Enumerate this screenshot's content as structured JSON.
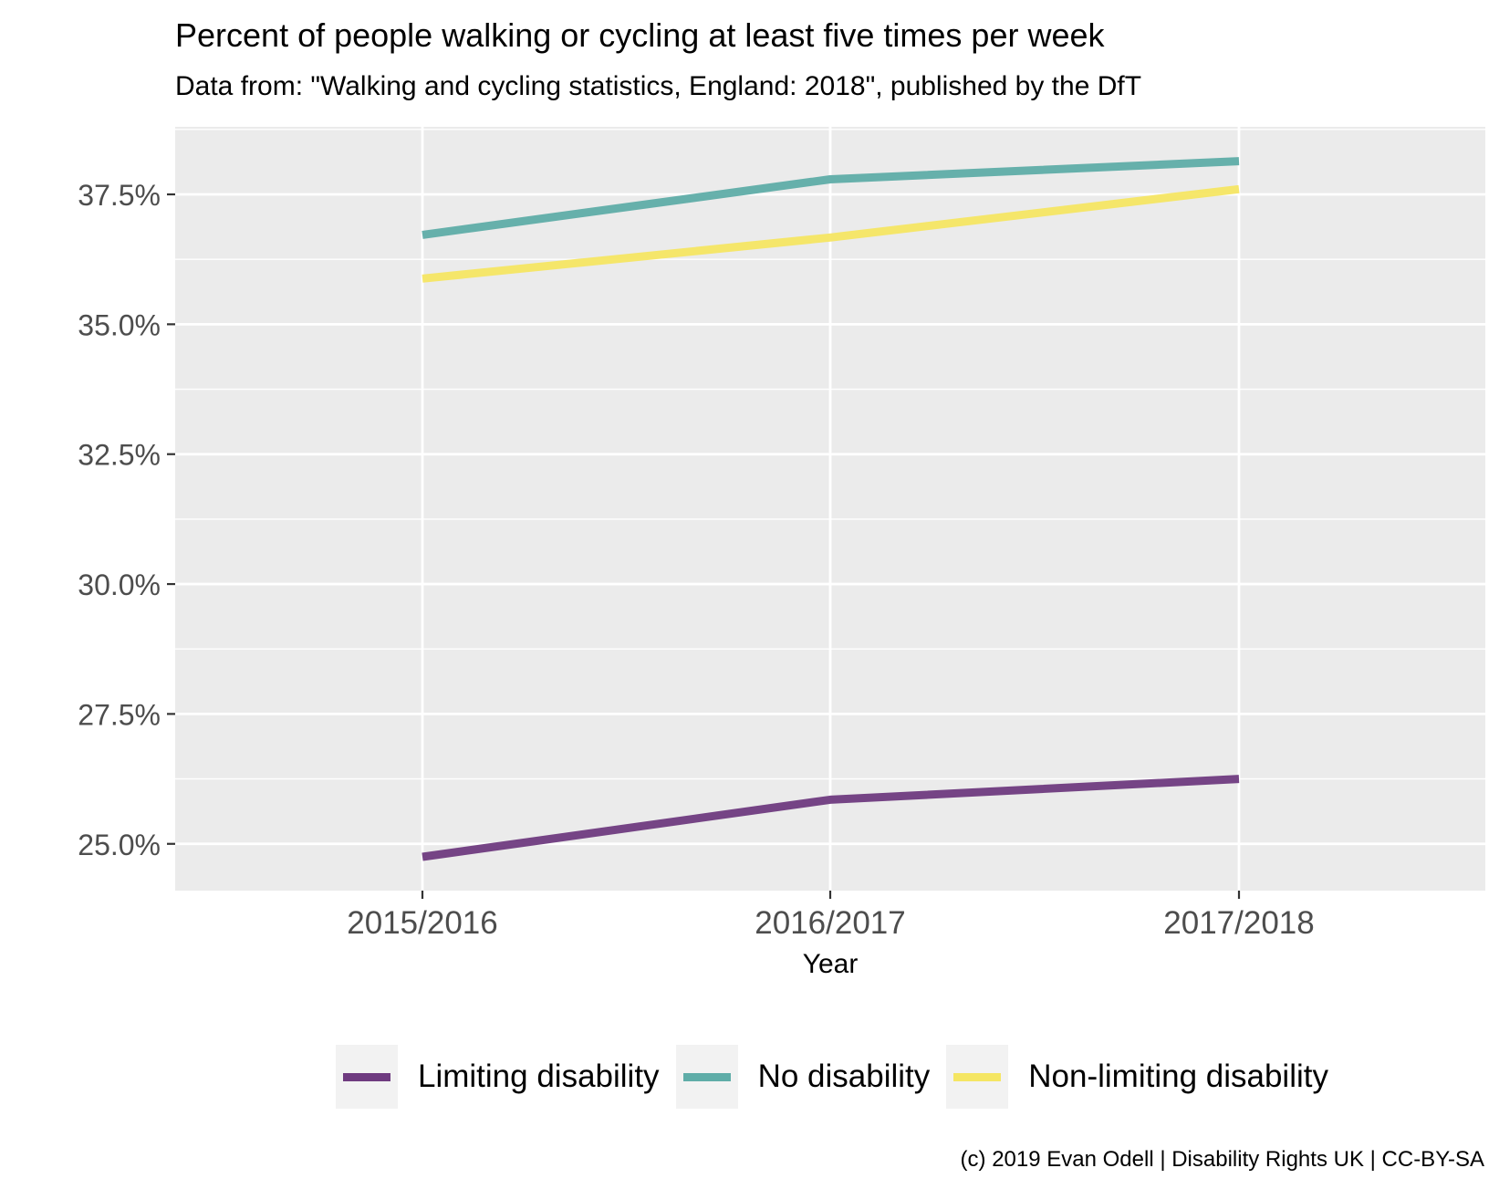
{
  "chart_data": {
    "type": "line",
    "title": "Percent of people walking or cycling at least five times per week",
    "subtitle": "Data from: \"Walking and cycling statistics, England: 2018\", published by the DfT",
    "xlabel": "Year",
    "ylabel": "",
    "categories": [
      "2015/2016",
      "2016/2017",
      "2017/2018"
    ],
    "y_ticks": [
      25.0,
      27.5,
      30.0,
      32.5,
      35.0,
      37.5
    ],
    "y_tick_labels": [
      "25.0%",
      "27.5%",
      "30.0%",
      "32.5%",
      "35.0%",
      "37.5%"
    ],
    "ylim": [
      24.1,
      38.8
    ],
    "grid": true,
    "legend_position": "bottom",
    "series": [
      {
        "name": "Limiting disability",
        "color": "#6f3b80",
        "values": [
          24.75,
          25.85,
          26.25
        ]
      },
      {
        "name": "No disability",
        "color": "#5fada8",
        "values": [
          36.72,
          37.79,
          38.14
        ]
      },
      {
        "name": "Non-limiting disability",
        "color": "#f5e663",
        "values": [
          35.88,
          36.67,
          37.6
        ]
      }
    ],
    "caption": "(c) 2019 Evan Odell | Disability Rights UK | CC-BY-SA"
  }
}
